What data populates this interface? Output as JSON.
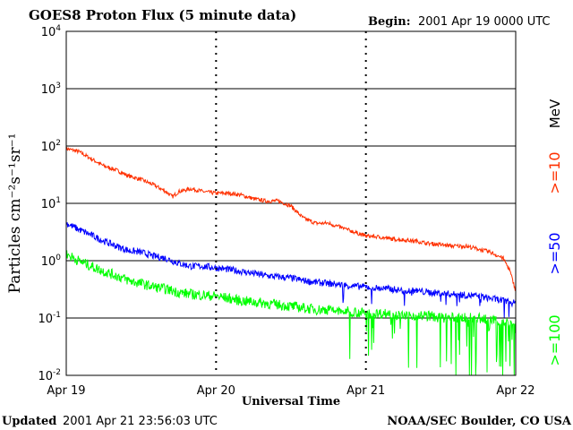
{
  "header": {
    "title": "GOES8 Proton Flux (5 minute data)",
    "begin_label": "Begin:",
    "begin_value": "2001 Apr 19 0000 UTC"
  },
  "footer": {
    "updated_label": "Updated",
    "updated_value": "2001 Apr 21 23:56:03 UTC",
    "credit": "NOAA/SEC Boulder, CO USA"
  },
  "colors": {
    "ge10": "#ff3000",
    "ge50": "#0000ff",
    "ge100": "#00ff00",
    "grid": "#000000",
    "background": "#ffffff"
  },
  "chart_data": {
    "type": "line",
    "title": "GOES8 Proton Flux (5 minute data)",
    "xlabel": "Universal Time",
    "ylabel": "Particles cm⁻²s⁻¹sr⁻¹",
    "yscale": "log",
    "ylim": [
      0.01,
      10000
    ],
    "xlim": [
      0,
      72
    ],
    "x_unit": "hours since 2001 Apr 19 0000 UTC",
    "x_ticks": [
      {
        "x": 0,
        "label": "Apr 19"
      },
      {
        "x": 24,
        "label": "Apr 20"
      },
      {
        "x": 48,
        "label": "Apr 21"
      },
      {
        "x": 72,
        "label": "Apr 22"
      }
    ],
    "y_ticks": [
      {
        "value": 0.01,
        "base": "10",
        "exp": "-2"
      },
      {
        "value": 0.1,
        "base": "10",
        "exp": "-1"
      },
      {
        "value": 1,
        "base": "10",
        "exp": "0"
      },
      {
        "value": 10,
        "base": "10",
        "exp": "1"
      },
      {
        "value": 100,
        "base": "10",
        "exp": "2"
      },
      {
        "value": 1000,
        "base": "10",
        "exp": "3"
      },
      {
        "value": 10000,
        "base": "10",
        "exp": "4"
      }
    ],
    "grid": true,
    "legend_unit": "MeV",
    "series": [
      {
        "name": ">=10",
        "color": "#ff3000",
        "x": [
          0,
          2,
          4,
          6,
          8,
          10,
          12,
          14,
          16,
          17,
          18,
          20,
          22,
          24,
          26,
          28,
          30,
          32,
          34,
          36,
          37,
          38,
          40,
          42,
          44,
          46,
          48,
          50,
          52,
          54,
          56,
          58,
          60,
          62,
          64,
          66,
          68,
          70,
          71,
          72
        ],
        "values": [
          90,
          80,
          60,
          45,
          38,
          30,
          26,
          21,
          16,
          13,
          16,
          18,
          16,
          15,
          15,
          14,
          12,
          11,
          11,
          9,
          7,
          5.5,
          4.5,
          4.5,
          3.8,
          3.2,
          2.7,
          2.6,
          2.4,
          2.3,
          2.2,
          2.0,
          1.9,
          1.8,
          1.8,
          1.6,
          1.4,
          1.1,
          0.7,
          0.3
        ]
      },
      {
        "name": ">=50",
        "color": "#0000ff",
        "x": [
          0,
          2,
          4,
          6,
          8,
          10,
          12,
          14,
          16,
          18,
          20,
          22,
          24,
          26,
          28,
          30,
          32,
          34,
          36,
          38,
          40,
          42,
          44,
          46,
          48,
          50,
          52,
          54,
          56,
          58,
          60,
          62,
          64,
          66,
          68,
          70,
          72
        ],
        "values": [
          4.5,
          3.5,
          2.8,
          2.2,
          1.8,
          1.5,
          1.4,
          1.2,
          1.1,
          0.9,
          0.8,
          0.8,
          0.75,
          0.7,
          0.65,
          0.6,
          0.55,
          0.52,
          0.5,
          0.45,
          0.42,
          0.4,
          0.38,
          0.36,
          0.35,
          0.33,
          0.32,
          0.3,
          0.3,
          0.28,
          0.27,
          0.26,
          0.25,
          0.24,
          0.22,
          0.2,
          0.18
        ]
      },
      {
        "name": ">=100",
        "color": "#00ff00",
        "x": [
          0,
          2,
          4,
          6,
          8,
          10,
          12,
          14,
          16,
          18,
          20,
          22,
          24,
          26,
          28,
          30,
          32,
          34,
          36,
          38,
          40,
          42,
          44,
          46,
          48,
          50,
          52,
          54,
          56,
          58,
          60,
          62,
          64,
          66,
          68,
          70,
          72
        ],
        "values": [
          1.3,
          1.0,
          0.8,
          0.65,
          0.55,
          0.45,
          0.4,
          0.35,
          0.32,
          0.28,
          0.26,
          0.25,
          0.24,
          0.22,
          0.2,
          0.19,
          0.18,
          0.17,
          0.16,
          0.15,
          0.14,
          0.14,
          0.13,
          0.13,
          0.12,
          0.12,
          0.12,
          0.11,
          0.11,
          0.11,
          0.1,
          0.1,
          0.1,
          0.1,
          0.09,
          0.09,
          0.08
        ]
      }
    ]
  }
}
